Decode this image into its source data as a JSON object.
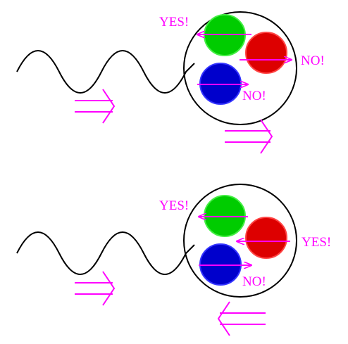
{
  "colors": {
    "accent": "#ff00ff",
    "wave": "#000000",
    "green_particle": "#00cc00",
    "red_particle": "#dd0000",
    "blue_particle": "#0000cc"
  },
  "top_panel": {
    "green_label": "YES!",
    "red_label": "NO!",
    "blue_label": "NO!"
  },
  "bottom_panel": {
    "green_label": "YES!",
    "red_label": "YES!",
    "blue_label": "NO!"
  }
}
